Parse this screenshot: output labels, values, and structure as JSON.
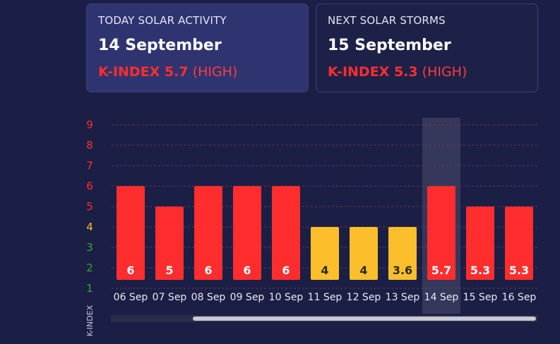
{
  "today": {
    "label": "TODAY SOLAR ACTIVITY",
    "date": "14 September",
    "kindex": "K-INDEX 5.7",
    "level": "(HIGH)"
  },
  "next": {
    "label": "NEXT SOLAR STORMS",
    "date": "15 September",
    "kindex": "K-INDEX 5.3",
    "level": "(HIGH)"
  },
  "colors": {
    "high": "#ff2d2d",
    "moderate": "#fcbf2b",
    "low": "#2fa83a",
    "highlight": "#3a3d5e"
  },
  "chart_data": {
    "type": "bar",
    "ylabel": "K-INDEX",
    "ylim": [
      0,
      9
    ],
    "yticks": [
      1,
      2,
      3,
      4,
      5,
      6,
      7,
      8,
      9
    ],
    "ytick_colors": [
      "#2fa83a",
      "#2fa83a",
      "#2fa83a",
      "#fcbf2b",
      "#ff2d2d",
      "#ff2d2d",
      "#ff2d2d",
      "#ff2d2d",
      "#ff2d2d"
    ],
    "categories": [
      "06 Sep",
      "07 Sep",
      "08 Sep",
      "09 Sep",
      "10 Sep",
      "11 Sep",
      "12 Sep",
      "13 Sep",
      "14 Sep",
      "15 Sep",
      "16 Sep"
    ],
    "values": [
      6,
      5,
      6,
      6,
      6,
      4,
      4,
      3.6,
      5.7,
      5.3,
      5.3
    ],
    "bar_heights": [
      6,
      5,
      6,
      6,
      6,
      4,
      4,
      4,
      6,
      5,
      5
    ],
    "labels": [
      "6",
      "5",
      "6",
      "6",
      "6",
      "4",
      "4",
      "3.6",
      "5.7",
      "5.3",
      "5.3"
    ],
    "bar_colors": [
      "#ff2d2d",
      "#ff2d2d",
      "#ff2d2d",
      "#ff2d2d",
      "#ff2d2d",
      "#fcbf2b",
      "#fcbf2b",
      "#fcbf2b",
      "#ff2d2d",
      "#ff2d2d",
      "#ff2d2d"
    ],
    "highlight_category": "14 Sep",
    "grid": true,
    "scrollbar_fraction_start": 0.19
  }
}
